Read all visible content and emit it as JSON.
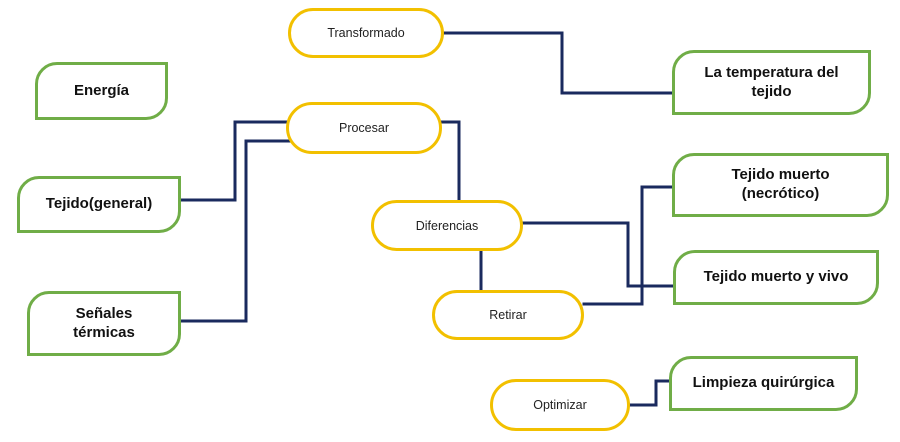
{
  "diagram": {
    "actions": {
      "transformado": "Transformado",
      "procesar": "Procesar",
      "diferencias": "Diferencias",
      "retirar": "Retirar",
      "optimizar": "Optimizar"
    },
    "concepts": {
      "energia": "Energía",
      "tejido_general": "Tejido(general)",
      "senales_termicas": "Señales\ntérmicas",
      "temperatura_tejido": "La temperatura del\ntejido",
      "tejido_muerto_necrotico": "Tejido muerto\n(necrótico)",
      "tejido_muerto_vivo": "Tejido muerto y vivo",
      "limpieza_quirurgica": "Limpieza quirúrgica"
    },
    "colors": {
      "concept_border": "#70ad47",
      "action_border": "#f2c000",
      "connector": "#1a2a5e"
    }
  }
}
